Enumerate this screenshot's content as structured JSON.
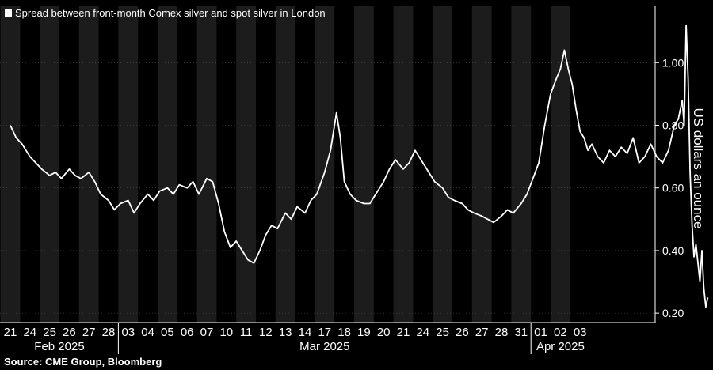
{
  "chart_data": {
    "type": "line",
    "series": [
      {
        "name": "Spread between front-month Comex silver and spot silver in London",
        "color": "#ffffff"
      }
    ],
    "ylabel": "US dollars an ounce",
    "yticks": [
      "0.20",
      "0.40",
      "0.60",
      "0.80",
      "1.00"
    ],
    "yticks_values": [
      0.2,
      0.4,
      0.6,
      0.8,
      1.0
    ],
    "ylim": [
      0.17,
      1.18
    ],
    "x_tick_labels": [
      "21",
      "24",
      "25",
      "26",
      "27",
      "28",
      "03",
      "04",
      "05",
      "06",
      "07",
      "10",
      "11",
      "12",
      "13",
      "14",
      "17",
      "18",
      "19",
      "20",
      "21",
      "24",
      "25",
      "26",
      "27",
      "28",
      "31",
      "01",
      "02",
      "03"
    ],
    "months": [
      {
        "label": "Feb 2025",
        "start_index": 0,
        "end_index": 5
      },
      {
        "label": "Mar 2025",
        "start_index": 6,
        "end_index": 26
      },
      {
        "label": "Apr 2025",
        "start_index": 27,
        "end_index": 29
      }
    ],
    "points": [
      [
        0.0,
        0.8
      ],
      [
        0.3,
        0.76
      ],
      [
        0.6,
        0.74
      ],
      [
        1.0,
        0.7
      ],
      [
        1.3,
        0.68
      ],
      [
        1.6,
        0.66
      ],
      [
        2.0,
        0.64
      ],
      [
        2.3,
        0.65
      ],
      [
        2.6,
        0.63
      ],
      [
        3.0,
        0.66
      ],
      [
        3.3,
        0.64
      ],
      [
        3.6,
        0.63
      ],
      [
        4.0,
        0.65
      ],
      [
        4.3,
        0.62
      ],
      [
        4.6,
        0.58
      ],
      [
        5.0,
        0.56
      ],
      [
        5.3,
        0.53
      ],
      [
        5.6,
        0.55
      ],
      [
        6.0,
        0.56
      ],
      [
        6.3,
        0.52
      ],
      [
        6.6,
        0.55
      ],
      [
        7.0,
        0.58
      ],
      [
        7.3,
        0.56
      ],
      [
        7.6,
        0.59
      ],
      [
        8.0,
        0.6
      ],
      [
        8.3,
        0.58
      ],
      [
        8.6,
        0.61
      ],
      [
        9.0,
        0.6
      ],
      [
        9.3,
        0.62
      ],
      [
        9.6,
        0.58
      ],
      [
        10.0,
        0.63
      ],
      [
        10.3,
        0.62
      ],
      [
        10.6,
        0.55
      ],
      [
        10.9,
        0.46
      ],
      [
        11.2,
        0.41
      ],
      [
        11.5,
        0.43
      ],
      [
        11.8,
        0.4
      ],
      [
        12.1,
        0.37
      ],
      [
        12.4,
        0.36
      ],
      [
        12.7,
        0.4
      ],
      [
        13.0,
        0.45
      ],
      [
        13.3,
        0.48
      ],
      [
        13.6,
        0.47
      ],
      [
        14.0,
        0.52
      ],
      [
        14.3,
        0.5
      ],
      [
        14.6,
        0.54
      ],
      [
        15.0,
        0.52
      ],
      [
        15.3,
        0.56
      ],
      [
        15.6,
        0.58
      ],
      [
        16.0,
        0.65
      ],
      [
        16.3,
        0.72
      ],
      [
        16.6,
        0.84
      ],
      [
        16.8,
        0.76
      ],
      [
        17.0,
        0.62
      ],
      [
        17.3,
        0.58
      ],
      [
        17.6,
        0.56
      ],
      [
        18.0,
        0.55
      ],
      [
        18.3,
        0.55
      ],
      [
        18.6,
        0.58
      ],
      [
        19.0,
        0.62
      ],
      [
        19.3,
        0.66
      ],
      [
        19.6,
        0.69
      ],
      [
        20.0,
        0.66
      ],
      [
        20.3,
        0.68
      ],
      [
        20.6,
        0.72
      ],
      [
        21.0,
        0.68
      ],
      [
        21.3,
        0.65
      ],
      [
        21.6,
        0.62
      ],
      [
        22.0,
        0.6
      ],
      [
        22.3,
        0.57
      ],
      [
        22.6,
        0.56
      ],
      [
        23.0,
        0.55
      ],
      [
        23.3,
        0.53
      ],
      [
        23.6,
        0.52
      ],
      [
        24.0,
        0.51
      ],
      [
        24.3,
        0.5
      ],
      [
        24.6,
        0.49
      ],
      [
        25.0,
        0.51
      ],
      [
        25.3,
        0.53
      ],
      [
        25.6,
        0.52
      ],
      [
        26.0,
        0.55
      ],
      [
        26.3,
        0.58
      ],
      [
        26.6,
        0.63
      ],
      [
        26.9,
        0.68
      ],
      [
        27.2,
        0.8
      ],
      [
        27.5,
        0.9
      ],
      [
        27.8,
        0.95
      ],
      [
        28.0,
        0.98
      ],
      [
        28.2,
        1.04
      ],
      [
        28.4,
        0.98
      ],
      [
        28.6,
        0.93
      ],
      [
        28.8,
        0.85
      ],
      [
        29.0,
        0.78
      ],
      [
        29.2,
        0.76
      ],
      [
        29.4,
        0.72
      ],
      [
        29.6,
        0.74
      ],
      [
        29.9,
        0.7
      ],
      [
        30.2,
        0.68
      ],
      [
        30.5,
        0.72
      ],
      [
        30.8,
        0.7
      ],
      [
        31.1,
        0.73
      ],
      [
        31.4,
        0.71
      ],
      [
        31.7,
        0.76
      ],
      [
        32.0,
        0.68
      ],
      [
        32.3,
        0.7
      ],
      [
        32.6,
        0.74
      ],
      [
        32.9,
        0.7
      ],
      [
        33.2,
        0.68
      ],
      [
        33.5,
        0.72
      ],
      [
        33.8,
        0.8
      ],
      [
        34.0,
        0.82
      ],
      [
        34.2,
        0.88
      ],
      [
        34.3,
        0.8
      ],
      [
        34.4,
        1.12
      ],
      [
        34.5,
        0.95
      ],
      [
        34.6,
        0.65
      ],
      [
        34.7,
        0.48
      ],
      [
        34.8,
        0.38
      ],
      [
        34.9,
        0.42
      ],
      [
        35.0,
        0.36
      ],
      [
        35.1,
        0.3
      ],
      [
        35.2,
        0.4
      ],
      [
        35.3,
        0.28
      ],
      [
        35.4,
        0.22
      ],
      [
        35.5,
        0.25
      ]
    ]
  },
  "legend": {
    "label": "Spread between front-month Comex silver and spot silver in London"
  },
  "source": "Source: CME Group, Bloomberg"
}
